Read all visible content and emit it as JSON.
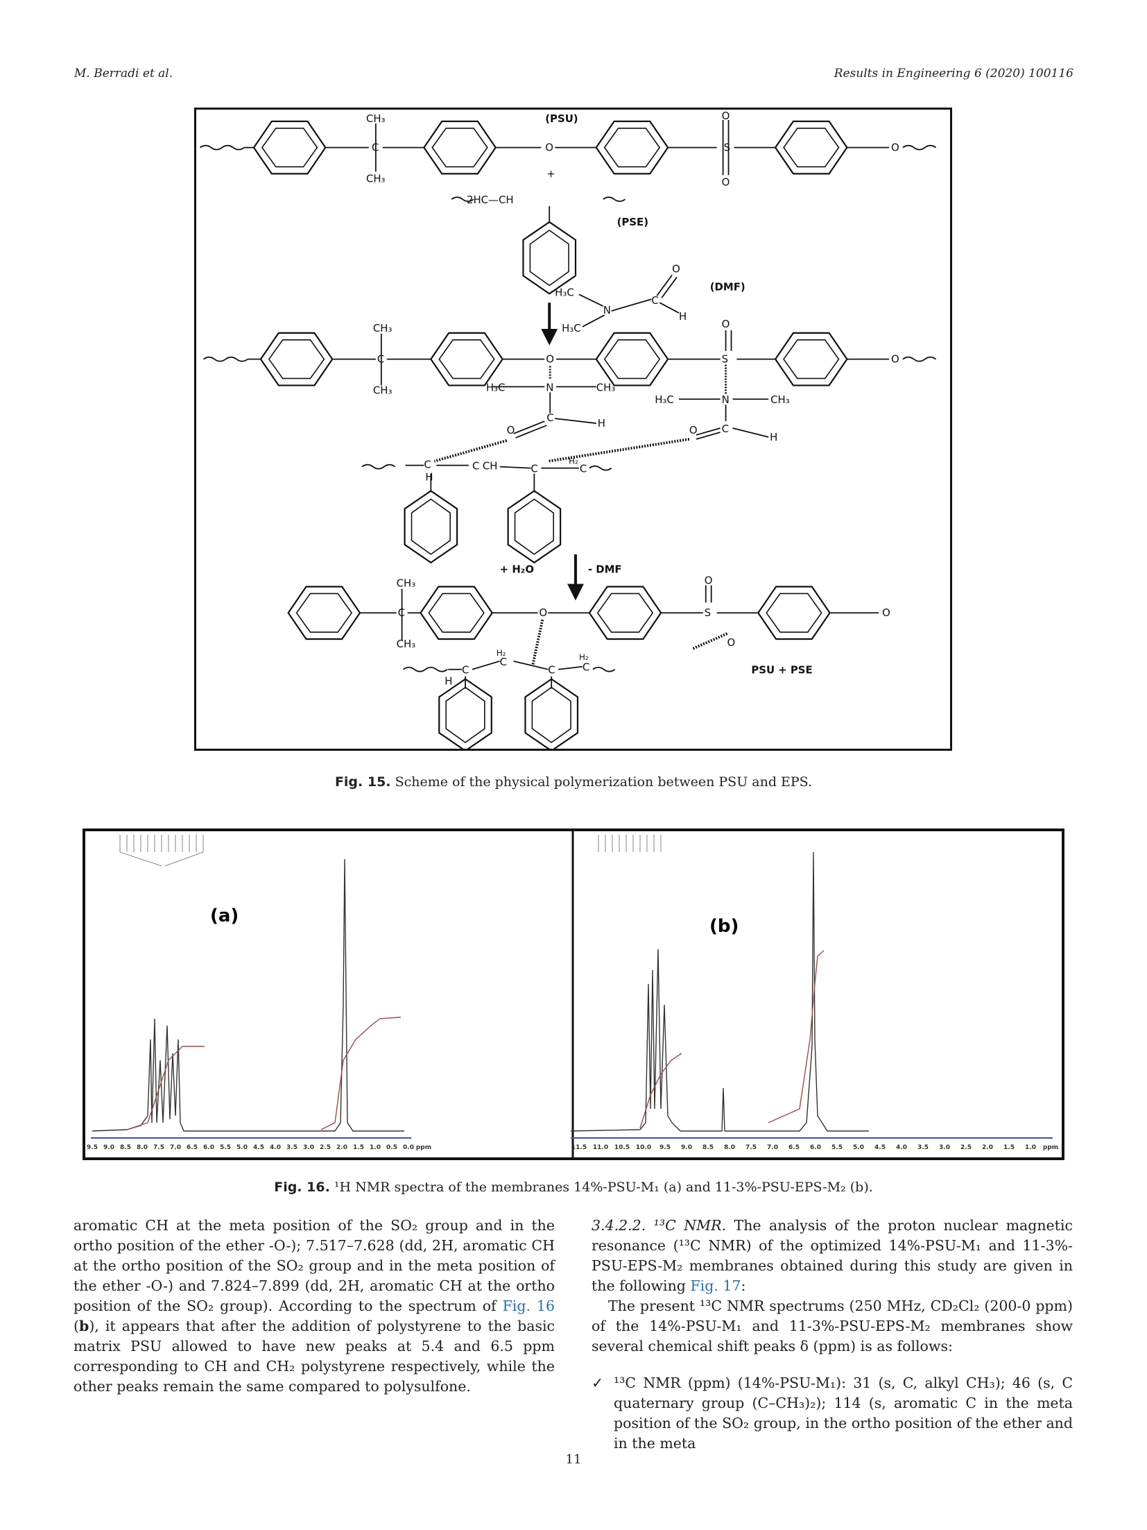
{
  "header": {
    "authors": "M. Berradi et al.",
    "journal": "Results in Engineering 6 (2020) 100116"
  },
  "figure15": {
    "label": "Fig. 15.",
    "caption": "Scheme of the physical polymerization between PSU and EPS.",
    "chem_labels": {
      "psu": "(PSU)",
      "pse": "(PSE)",
      "dmf": "(DMF)",
      "plus": "+",
      "ch3": "CH₃",
      "h3c": "H₃C",
      "ch2": "H₂",
      "two_hc_ch": "2HC—CH",
      "h2o": "+ H₂O",
      "minus_dmf": "- DMF",
      "psu_pse": "PSU + PSE",
      "c": "C",
      "s": "S",
      "o": "O",
      "n": "N",
      "h": "H",
      "ch": "CH"
    }
  },
  "figure16": {
    "label": "Fig. 16.",
    "caption": "¹H NMR spectra of the membranes 14%-PSU-M₁ (a) and 11-3%-PSU-EPS-M₂ (b).",
    "panel_a_label": "(a)",
    "panel_b_label": "(b)",
    "ppm_unit": "ppm",
    "axis_a_ticks": [
      "9.5",
      "9.0",
      "8.5",
      "8.0",
      "7.5",
      "7.0",
      "6.5",
      "6.0",
      "5.5",
      "5.0",
      "4.5",
      "4.0",
      "3.5",
      "3.0",
      "2.5",
      "2.0",
      "1.5",
      "1.0",
      "0.5",
      "0.0"
    ],
    "axis_b_ticks": [
      "11.5",
      "11.0",
      "10.5",
      "10.0",
      "9.5",
      "9.0",
      "8.5",
      "8.0",
      "7.5",
      "7.0",
      "6.5",
      "6.0",
      "5.5",
      "5.0",
      "4.5",
      "4.0",
      "3.5",
      "3.0",
      "2.5",
      "2.0",
      "1.5",
      "1.0"
    ]
  },
  "text": {
    "left_para": "aromatic CH at the meta position of the SO₂ group and in the ortho position of the ether -O-); 7.517–7.628 (dd, 2H, aromatic CH at the ortho position of the SO₂ group and in the meta position of the ether -O-) and 7.824–7.899 (dd, 2H, aromatic CH at the ortho position of the SO₂ group). According to the spectrum of",
    "left_link": "Fig. 16",
    "left_bold": "b",
    "left_para_2": "), it appears that after the addition of polystyrene to the basic matrix PSU allowed to have new peaks at 5.4 and 6.5 ppm corresponding to CH and CH₂ polystyrene respectively, while the other peaks remain the same compared to polysulfone.",
    "section_number": "3.4.2.2.",
    "section_title": "¹³C NMR.",
    "right_para_1": "The analysis of the proton nuclear magnetic resonance (¹³C NMR) of the optimized 14%-PSU-M₁ and 11-3%-PSU-EPS-M₂ membranes obtained during this study are given in the following",
    "right_link": "Fig. 17",
    "right_para_1_end": ":",
    "right_para_2": "The present ¹³C NMR spectrums (250 MHz, CD₂Cl₂ (200-0 ppm) of the 14%-PSU-M₁ and 11-3%-PSU-EPS-M₂ membranes show several chemical shift peaks δ (ppm) is as follows:",
    "bullet_mark": "✓",
    "bullet_1": "¹³C NMR (ppm) (14%-PSU-M₁): 31 (s, C, alkyl CH₃); 46 (s, C quaternary group (C–CH₃)₂); 114 (s, aromatic C in the meta position of the SO₂ group, in the ortho position of the ether and in the meta"
  },
  "page_number": "11"
}
